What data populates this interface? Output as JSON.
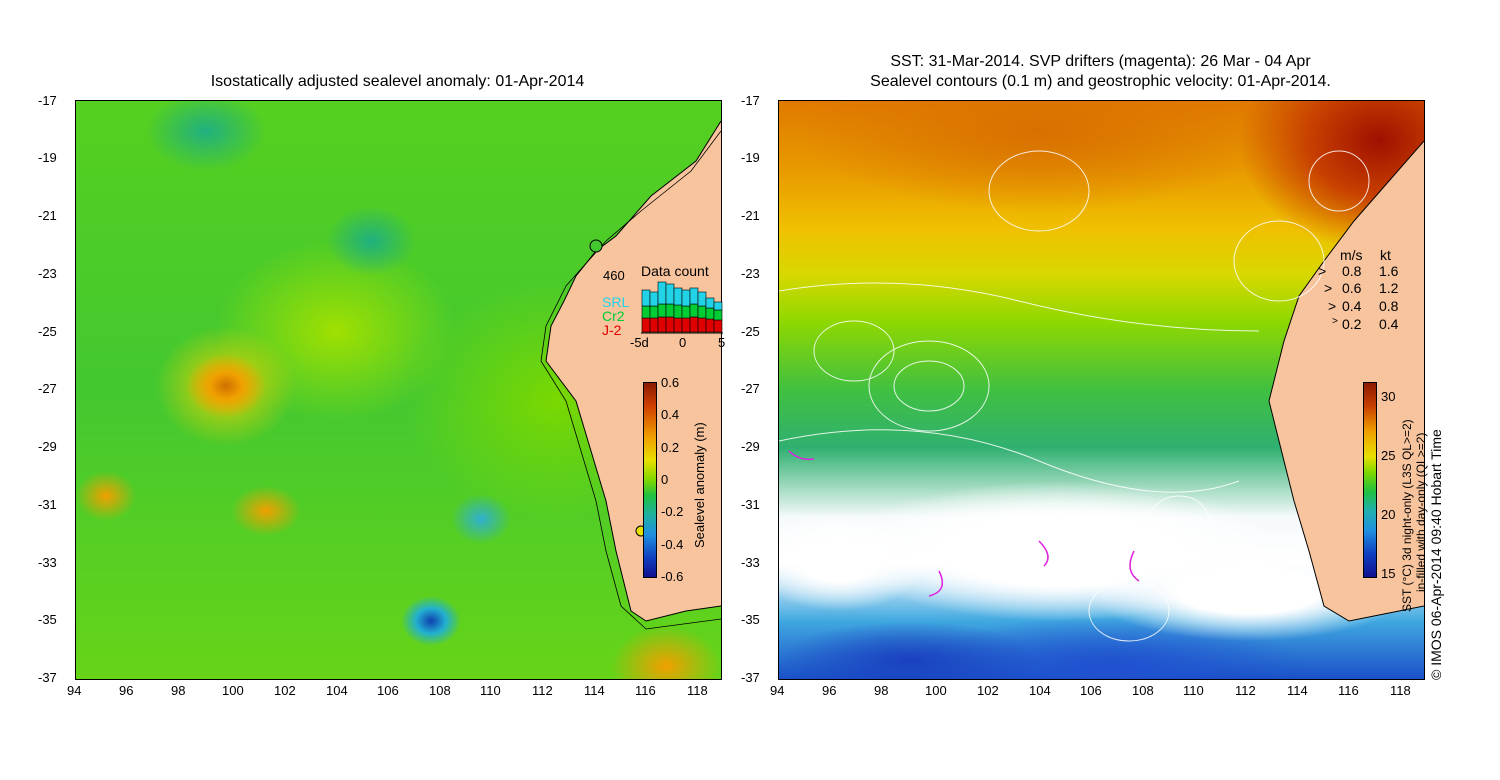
{
  "left_panel": {
    "title": "Isostatically adjusted sealevel anomaly: 01-Apr-2014",
    "y_ticks": [
      "-17",
      "-19",
      "-21",
      "-23",
      "-25",
      "-27",
      "-29",
      "-31",
      "-33",
      "-35",
      "-37"
    ],
    "x_ticks": [
      "94",
      "96",
      "98",
      "100",
      "102",
      "104",
      "106",
      "108",
      "110",
      "112",
      "114",
      "116",
      "118"
    ],
    "data_count": {
      "title": "Data count",
      "max": "460",
      "satellites": [
        {
          "name": "SRL",
          "color": "#22d3e8"
        },
        {
          "name": "Cr2",
          "color": "#00cc33"
        },
        {
          "name": "J-2",
          "color": "#e00000"
        }
      ],
      "x_ticks": [
        "-5d",
        "0",
        "5"
      ]
    },
    "colorbar": {
      "label": "Sealevel anomaly (m)",
      "ticks": [
        "0.6",
        "0.4",
        "0.2",
        "0",
        "-0.2",
        "-0.4",
        "-0.6"
      ]
    }
  },
  "right_panel": {
    "title_line1": "SST: 31-Mar-2014. SVP drifters (magenta): 26 Mar - 04 Apr",
    "title_line2": "Sealevel contours (0.1 m) and geostrophic velocity: 01-Apr-2014.",
    "y_ticks": [
      "-17",
      "-19",
      "-21",
      "-23",
      "-25",
      "-27",
      "-29",
      "-31",
      "-33",
      "-35",
      "-37"
    ],
    "x_ticks": [
      "94",
      "96",
      "98",
      "100",
      "102",
      "104",
      "106",
      "108",
      "110",
      "112",
      "114",
      "116",
      "118"
    ],
    "velocity_legend": {
      "header_ms": "m/s",
      "header_kt": "kt",
      "rows": [
        {
          "ms": "0.8",
          "kt": "1.6"
        },
        {
          "ms": "0.6",
          "kt": "1.2"
        },
        {
          "ms": "0.4",
          "kt": "0.8"
        },
        {
          "ms": "0.2",
          "kt": "0.4"
        }
      ]
    },
    "colorbar": {
      "ticks": [
        "30",
        "25",
        "20",
        "15"
      ],
      "label_line1": "SST (°C) 3d night-only (L3S QL>=2)",
      "label_line2": "in-filled with day-only (QL>=2)"
    },
    "copyright": "© IMOS 06-Apr-2014 09:40 Hobart Time"
  },
  "colors": {
    "land": "#f7c49d",
    "ssha_base": "#33cc22",
    "sst_warm": "#c85000",
    "sst_cold": "#1a44c8"
  }
}
